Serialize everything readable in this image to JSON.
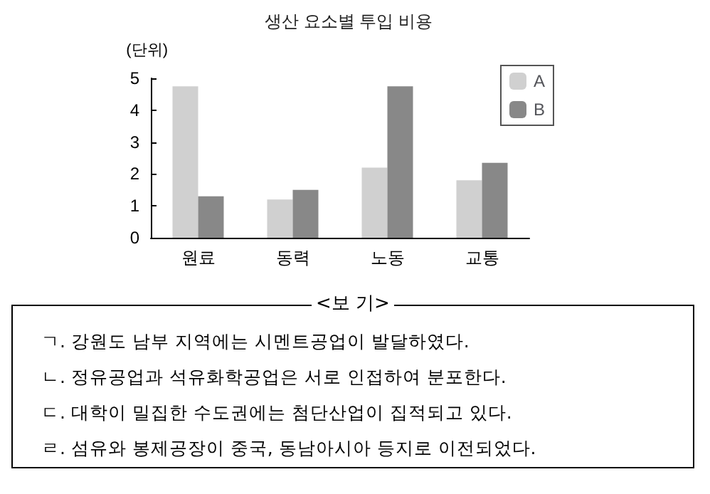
{
  "chart_data": {
    "type": "bar",
    "title": "생산 요소별 투입 비용",
    "ylabel": "(단위)",
    "categories": [
      "원료",
      "동력",
      "노동",
      "교통"
    ],
    "series": [
      {
        "name": "A",
        "color": "#d0d0d0",
        "values": [
          4.75,
          1.2,
          2.2,
          1.8
        ]
      },
      {
        "name": "B",
        "color": "#888888",
        "values": [
          1.3,
          1.5,
          4.75,
          2.35
        ]
      }
    ],
    "ylim": [
      0,
      5
    ],
    "yticks": [
      0,
      1,
      2,
      3,
      4,
      5
    ],
    "grid": false,
    "legend": "top right",
    "annotations": [
      "<보 기>",
      "ㄱ. 강원도 남부 지역에는 시멘트공업이 발달하였다.",
      "ㄴ. 정유공업과 석유화학공업은 서로 인접하여 분포한다.",
      "ㄷ. 대학이 밀집한 수도권에는 첨단산업이 집적되고 있다.",
      "ㄹ. 섬유와 봉제공장이 중국, 동남아시아 등지로 이전되었다."
    ]
  }
}
